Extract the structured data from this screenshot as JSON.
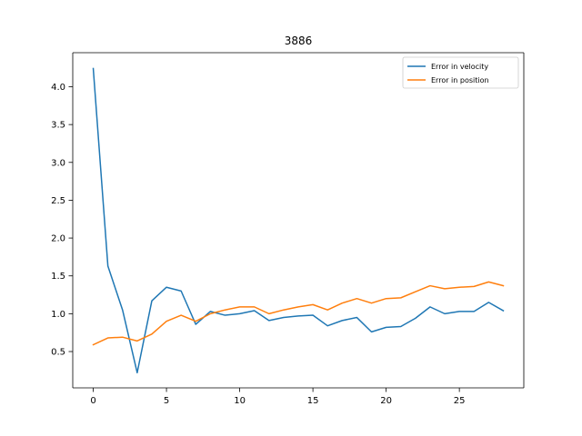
{
  "chart_data": {
    "type": "line",
    "title": "3886",
    "xlabel": "",
    "ylabel": "",
    "xlim": [
      -1.4,
      29.4
    ],
    "ylim": [
      0.02,
      4.45
    ],
    "xticks": [
      0,
      5,
      10,
      15,
      20,
      25
    ],
    "yticks": [
      0.5,
      1.0,
      1.5,
      2.0,
      2.5,
      3.0,
      3.5,
      4.0
    ],
    "grid": false,
    "legend_position": "top-right",
    "x": [
      0,
      1,
      2,
      3,
      4,
      5,
      6,
      7,
      8,
      9,
      10,
      11,
      12,
      13,
      14,
      15,
      16,
      17,
      18,
      19,
      20,
      21,
      22,
      23,
      24,
      25,
      26,
      27,
      28
    ],
    "series": [
      {
        "name": "Error in velocity",
        "color": "#1f77b4",
        "values": [
          4.24,
          1.63,
          1.05,
          0.22,
          1.17,
          1.35,
          1.3,
          0.86,
          1.03,
          0.98,
          1.0,
          1.04,
          0.91,
          0.95,
          0.97,
          0.98,
          0.84,
          0.91,
          0.95,
          0.76,
          0.82,
          0.83,
          0.94,
          1.09,
          1.0,
          1.03,
          1.03,
          1.15,
          1.04
        ]
      },
      {
        "name": "Error in position",
        "color": "#ff7f0e",
        "values": [
          0.59,
          0.68,
          0.69,
          0.64,
          0.73,
          0.9,
          0.98,
          0.9,
          1.0,
          1.05,
          1.09,
          1.09,
          1.0,
          1.05,
          1.09,
          1.12,
          1.05,
          1.14,
          1.2,
          1.14,
          1.2,
          1.21,
          1.29,
          1.37,
          1.33,
          1.35,
          1.36,
          1.42,
          1.37
        ]
      }
    ]
  }
}
